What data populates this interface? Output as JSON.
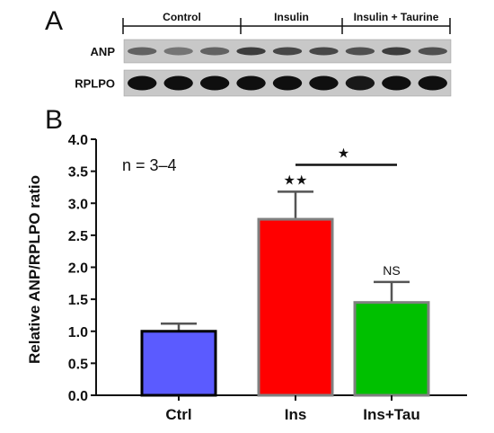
{
  "panel_a": {
    "letter": "A",
    "groups": [
      {
        "label": "Control",
        "lanes": 3
      },
      {
        "label": "Insulin",
        "lanes": 3
      },
      {
        "label": "Insulin + Taurine",
        "lanes": 3
      }
    ],
    "blots": [
      {
        "label": "ANP",
        "band_intensity": [
          0.55,
          0.45,
          0.55,
          0.75,
          0.7,
          0.7,
          0.65,
          0.75,
          0.65
        ]
      },
      {
        "label": "RPLPO",
        "band_intensity": [
          1,
          1,
          1,
          1,
          1,
          1,
          0.95,
          1,
          1
        ]
      }
    ]
  },
  "panel_b": {
    "letter": "B",
    "annotation": "n = 3–4"
  },
  "chart_data": {
    "type": "bar",
    "categories": [
      "Ctrl",
      "Ins",
      "Ins+Tau"
    ],
    "values": [
      1.0,
      2.75,
      1.45
    ],
    "errors": [
      0.12,
      0.43,
      0.32
    ],
    "colors": [
      "#5b5bff",
      "#ff0000",
      "#00c000"
    ],
    "edge_colors": [
      "#000000",
      "#808080",
      "#808080"
    ],
    "ylabel": "Relative ANP/RPLPO ratio",
    "xlabel": "",
    "ylim": [
      0,
      4.0
    ],
    "yticks": [
      0.0,
      0.5,
      1.0,
      1.5,
      2.0,
      2.5,
      3.0,
      3.5,
      4.0
    ],
    "bar_labels": [
      "",
      "★★",
      "NS"
    ],
    "comparisons": [
      {
        "from": "Ins",
        "to": "Ins+Tau",
        "label": "★",
        "y": 3.6
      }
    ]
  }
}
